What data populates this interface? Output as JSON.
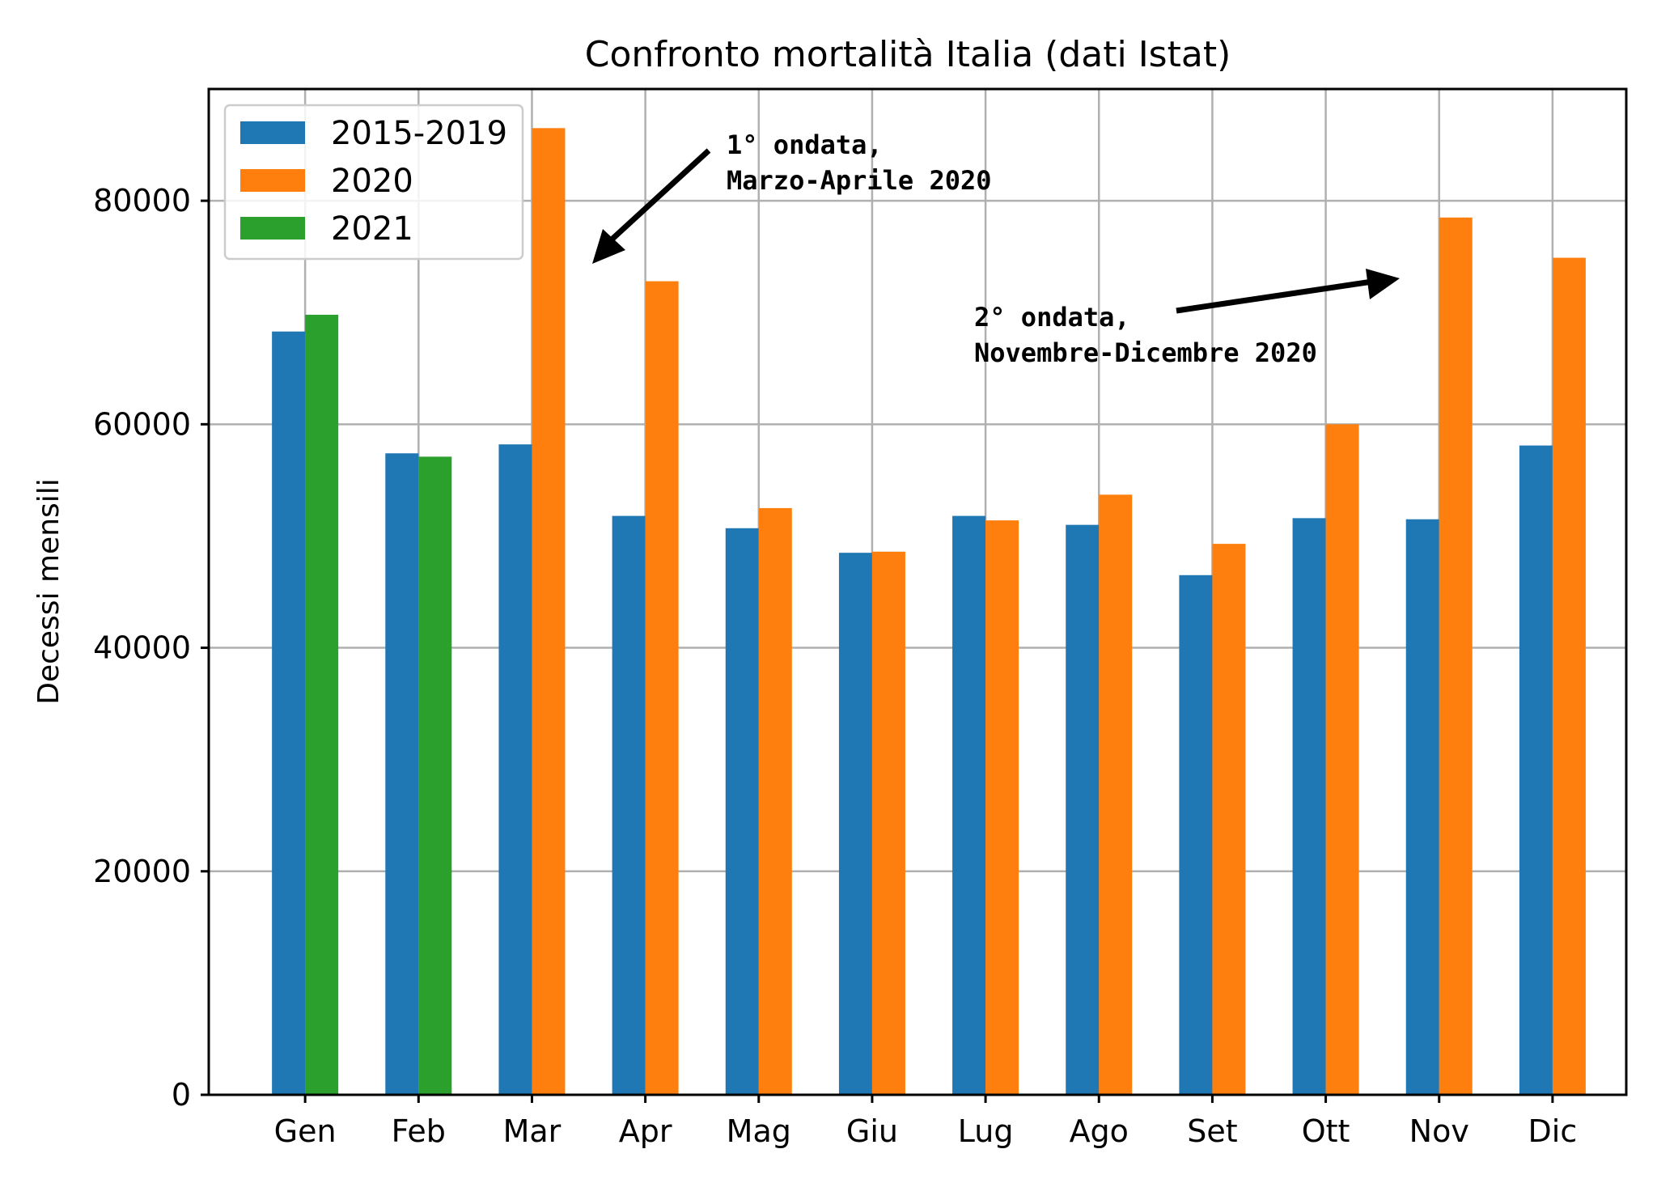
{
  "chart_data": {
    "type": "bar",
    "title": "Confronto mortalità Italia (dati Istat)",
    "xlabel": "",
    "ylabel": "Decessi mensili",
    "ylim": [
      0,
      90000
    ],
    "yticks": [
      0,
      20000,
      40000,
      60000,
      80000
    ],
    "grid": true,
    "legend_position": "top-left",
    "categories": [
      "Gen",
      "Feb",
      "Mar",
      "Apr",
      "Mag",
      "Giu",
      "Lug",
      "Ago",
      "Set",
      "Ott",
      "Nov",
      "Dic"
    ],
    "series": [
      {
        "name": "2015-2019",
        "color": "#1f77b4",
        "values": [
          68300,
          57400,
          58200,
          51800,
          50700,
          48500,
          51800,
          51000,
          46500,
          51600,
          51500,
          58100
        ]
      },
      {
        "name": "2020",
        "color": "#ff7f0e",
        "values": [
          null,
          null,
          86500,
          72800,
          52500,
          48600,
          51400,
          53700,
          49300,
          60000,
          78500,
          74900
        ]
      },
      {
        "name": "2021",
        "color": "#2ca02c",
        "values": [
          69800,
          57100,
          null,
          null,
          null,
          null,
          null,
          null,
          null,
          null,
          null,
          null
        ]
      }
    ],
    "annotations": [
      {
        "lines": [
          "1° ondata,",
          "Marzo-Aprile 2020"
        ],
        "target_month": "Mar"
      },
      {
        "lines": [
          "2° ondata,",
          "Novembre-Dicembre 2020"
        ],
        "target_month": "Nov"
      }
    ]
  }
}
